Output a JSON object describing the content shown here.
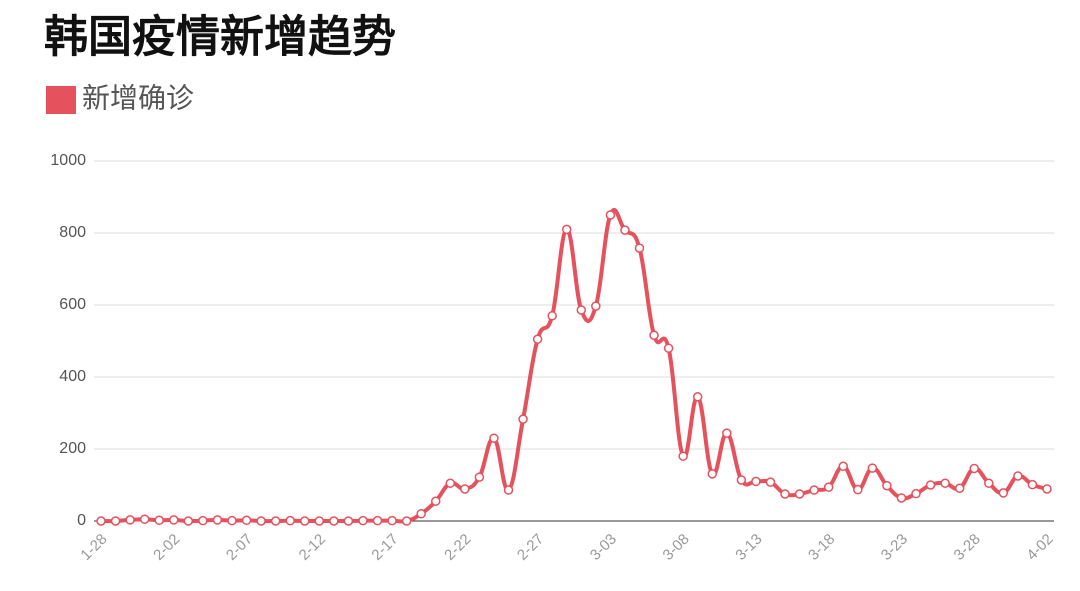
{
  "chart_data": {
    "type": "line",
    "title": "韩国疫情新增趋势",
    "categories": [
      "1-28",
      null,
      null,
      null,
      null,
      "2-02",
      null,
      null,
      null,
      null,
      "2-07",
      null,
      null,
      null,
      null,
      "2-12",
      null,
      null,
      null,
      null,
      "2-17",
      null,
      null,
      null,
      null,
      "2-22",
      null,
      null,
      null,
      null,
      "2-27",
      null,
      null,
      null,
      null,
      "3-03",
      null,
      null,
      null,
      null,
      "3-08",
      null,
      null,
      null,
      null,
      "3-13",
      null,
      null,
      null,
      null,
      "3-18",
      null,
      null,
      null,
      null,
      "3-23",
      null,
      null,
      null,
      null,
      "3-28",
      null,
      null,
      null,
      null,
      "4-02"
    ],
    "series": [
      {
        "name": "新增确诊",
        "color": "#e5515c",
        "values": [
          0,
          0,
          3,
          5,
          2,
          3,
          0,
          1,
          3,
          1,
          2,
          0,
          0,
          1,
          0,
          0,
          0,
          0,
          1,
          1,
          1,
          0,
          20,
          55,
          105,
          89,
          122,
          230,
          86,
          283,
          505,
          570,
          810,
          586,
          597,
          850,
          808,
          758,
          516,
          480,
          180,
          345,
          131,
          244,
          114,
          110,
          108,
          75,
          75,
          86,
          94,
          152,
          87,
          147,
          98,
          64,
          76,
          100,
          105,
          91,
          146,
          105,
          78,
          125,
          101,
          89
        ]
      }
    ],
    "ylim": [
      0,
      1000
    ],
    "yticks": [
      0,
      200,
      400,
      600,
      800,
      1000
    ],
    "grid": true
  }
}
